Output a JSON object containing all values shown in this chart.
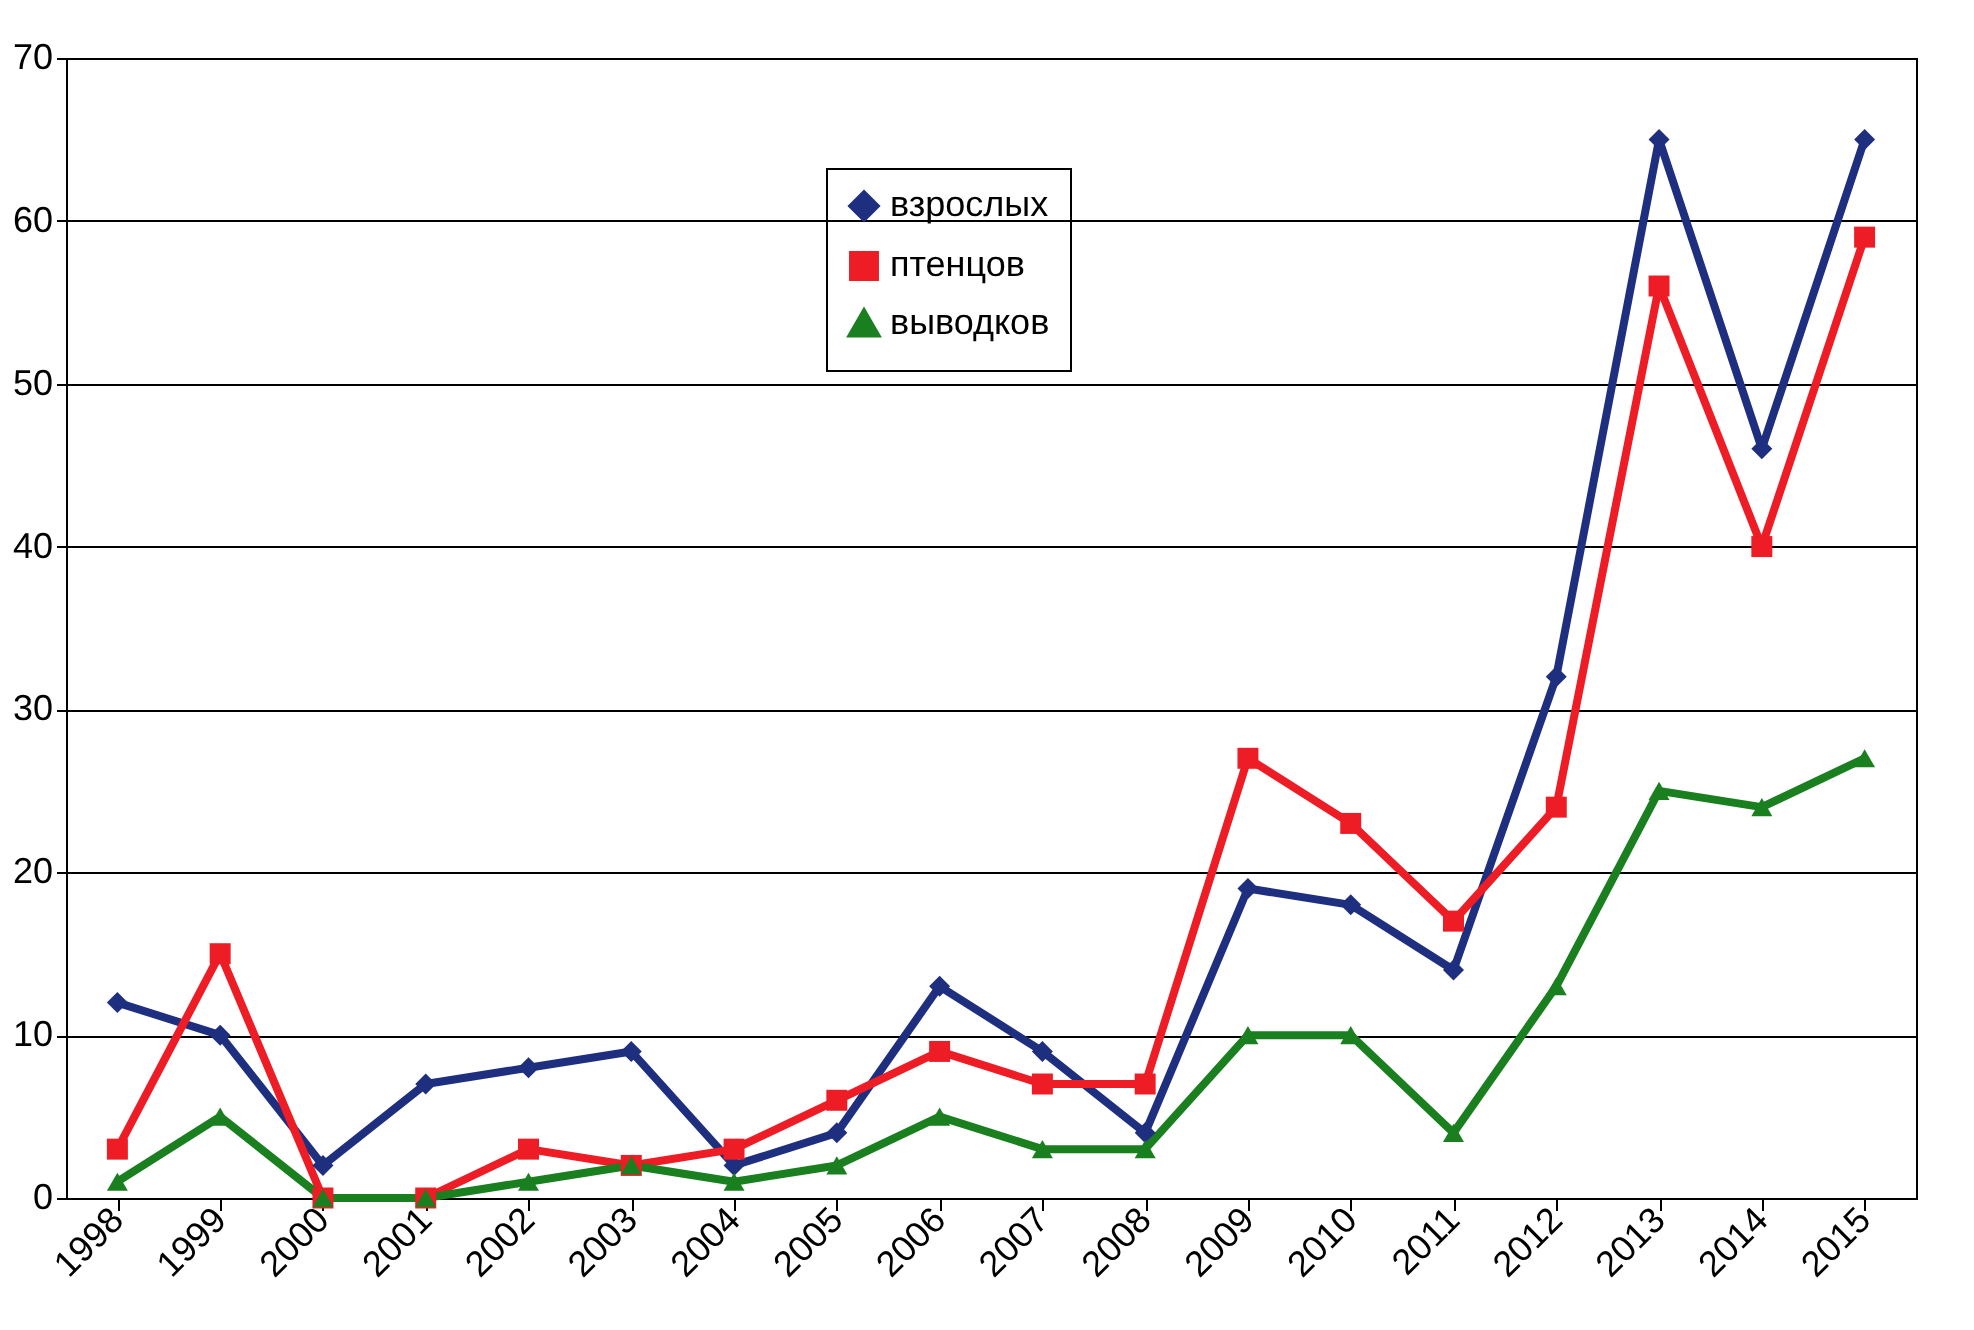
{
  "chart_data": {
    "type": "line",
    "categories": [
      "1998",
      "1999",
      "2000",
      "2001",
      "2002",
      "2003",
      "2004",
      "2005",
      "2006",
      "2007",
      "2008",
      "2009",
      "2010",
      "2011",
      "2012",
      "2013",
      "2014",
      "2015"
    ],
    "series": [
      {
        "name": "взрослых",
        "color": "#1f2f7f",
        "marker": "diamond",
        "values": [
          12,
          10,
          2,
          7,
          8,
          9,
          2,
          4,
          13,
          9,
          4,
          19,
          18,
          14,
          32,
          65,
          46,
          65
        ]
      },
      {
        "name": "птенцов",
        "color": "#ee1c25",
        "marker": "square",
        "values": [
          3,
          15,
          0,
          0,
          3,
          2,
          3,
          6,
          9,
          7,
          7,
          27,
          23,
          17,
          24,
          56,
          40,
          59
        ]
      },
      {
        "name": "выводков",
        "color": "#1a7f1f",
        "marker": "triangle",
        "values": [
          1,
          5,
          0,
          0,
          1,
          2,
          1,
          2,
          5,
          3,
          3,
          10,
          10,
          4,
          13,
          25,
          24,
          27
        ]
      }
    ],
    "ylim": [
      0,
      70
    ],
    "yticks": [
      0,
      10,
      20,
      30,
      40,
      50,
      60,
      70
    ],
    "grid": "y",
    "legend": "top",
    "line_style": "solid"
  }
}
